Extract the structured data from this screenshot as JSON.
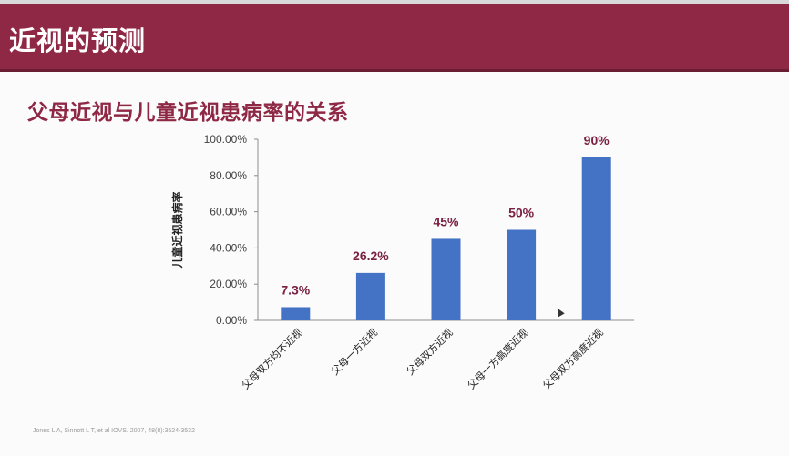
{
  "header": {
    "title": "近视的预测"
  },
  "subtitle": "父母近视与儿童近视患病率的关系",
  "citation": "Jones L A, Sinnott L T, et al IOVS. 2007, 48(8):3524-3532",
  "chart_data": {
    "type": "bar",
    "title": "",
    "xlabel": "",
    "ylabel": "儿童近视患病率",
    "categories": [
      "父母双方均不近视",
      "父母一方近视",
      "父母双方近视",
      "父母一方高度近视",
      "父母双方高度近视"
    ],
    "values": [
      7.3,
      26.2,
      45,
      50,
      90
    ],
    "data_labels": [
      "7.3%",
      "26.2%",
      "45%",
      "50%",
      "90%"
    ],
    "ylim": [
      0,
      100
    ],
    "yticks": [
      0,
      20,
      40,
      60,
      80,
      100
    ],
    "ytick_labels": [
      "0.00%",
      "20.00%",
      "40.00%",
      "60.00%",
      "80.00%",
      "100.00%"
    ],
    "grid": false,
    "colors": {
      "bar": "#4472c4",
      "label": "#7a2040"
    }
  }
}
